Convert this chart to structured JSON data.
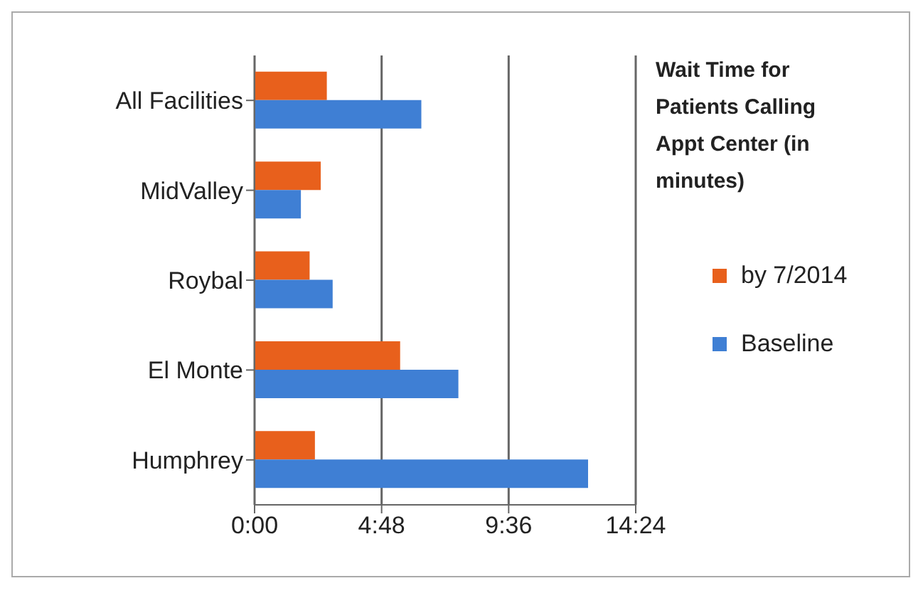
{
  "chart_data": {
    "type": "bar",
    "orientation": "horizontal",
    "title": "Wait Time for Patients Calling Appt Center (in minutes)",
    "categories": [
      "All Facilities",
      "MidValley",
      "Roybal",
      "El Monte",
      "Humphrey"
    ],
    "series": [
      {
        "name": "by 7/2014",
        "color": "#e8601c",
        "values": [
          2.73,
          2.5,
          2.08,
          5.5,
          2.28
        ]
      },
      {
        "name": "Baseline",
        "color": "#3f7fd4",
        "values": [
          6.3,
          1.75,
          2.95,
          7.7,
          12.6
        ]
      }
    ],
    "xlim": [
      0,
      14.4
    ],
    "xticks": [
      {
        "value": 0,
        "label": "0:00"
      },
      {
        "value": 4.8,
        "label": "4:48"
      },
      {
        "value": 9.6,
        "label": "9:36"
      },
      {
        "value": 14.4,
        "label": "14:24"
      }
    ],
    "grid": "x",
    "legend": "right"
  }
}
